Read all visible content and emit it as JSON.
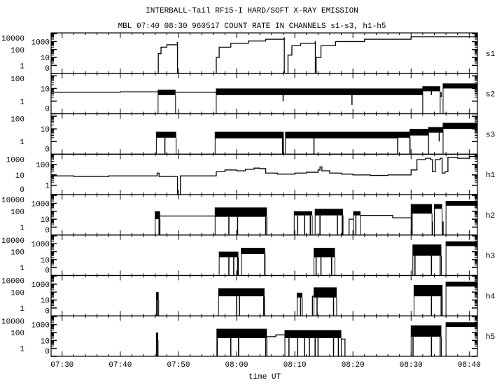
{
  "chart_data": {
    "type": "line",
    "title": "INTERBALL-Tail RF15-I HARD/SOFT X-RAY EMISSION",
    "subtitle": "MBL 07:40 08:30 960517  COUNT RATE IN CHANNELS s1-s3, h1-h5",
    "xlabel": "time UT",
    "xlim": [
      "07:28:06",
      "08:41:24"
    ],
    "xticks": [
      "07:30",
      "07:40",
      "07:50",
      "08:00",
      "08:10",
      "08:20",
      "08:30",
      "08:40"
    ],
    "y_scale": "log (zero shown at bottom)",
    "grid": false,
    "line_color": "#000000",
    "panels": [
      {
        "label": "s1",
        "ylog_range": [
          -1,
          4.1
        ],
        "yticks": [
          "0",
          "1",
          "10",
          "100",
          "1000",
          "10000"
        ],
        "lines": [
          [
            [
              "07:46:30",
              0
            ],
            [
              "07:46:32",
              30
            ],
            [
              "07:47:00",
              200
            ],
            [
              "07:48:00",
              400
            ],
            [
              "07:49:48",
              800
            ],
            [
              "07:49:50",
              0
            ]
          ],
          [
            [
              "07:56:24",
              0
            ],
            [
              "07:56:30",
              10
            ],
            [
              "07:57:00",
              200
            ],
            [
              "07:59:00",
              600
            ],
            [
              "08:02:00",
              1200
            ],
            [
              "08:05:00",
              2000
            ],
            [
              "08:08:10",
              3000
            ],
            [
              "08:08:12",
              0
            ]
          ],
          [
            [
              "08:08:45",
              0
            ],
            [
              "08:08:50",
              20
            ],
            [
              "08:09:30",
              300
            ],
            [
              "08:11:00",
              600
            ],
            [
              "08:13:30",
              1000
            ],
            [
              "08:13:32",
              0
            ]
          ],
          [
            [
              "08:13:36",
              0
            ],
            [
              "08:13:40",
              10
            ],
            [
              "08:14:30",
              300
            ],
            [
              "08:17:00",
              1000
            ],
            [
              "08:22:00",
              2000
            ],
            [
              "08:30:00",
              4000
            ],
            [
              "08:41:24",
              8000
            ]
          ]
        ],
        "bands": [],
        "dropouts": []
      },
      {
        "label": "s2",
        "ylog_range": [
          -1,
          2.2
        ],
        "yticks": [
          "0",
          "1",
          "10",
          "100"
        ],
        "lines": [
          [
            [
              "07:28:06",
              5
            ],
            [
              "07:35:00",
              5
            ],
            [
              "07:40:00",
              5.5
            ],
            [
              "07:46:30",
              5
            ],
            [
              "07:46:31",
              5
            ]
          ],
          [
            [
              "07:49:30",
              5
            ],
            [
              "07:53:00",
              5
            ],
            [
              "07:56:30",
              5
            ]
          ]
        ],
        "bands": [
          {
            "start": "07:46:30",
            "end": "07:49:30",
            "low": 3,
            "high": 8
          },
          {
            "start": "07:56:30",
            "end": "08:32:00",
            "low": 3,
            "high": 10
          },
          {
            "start": "08:32:00",
            "end": "08:35:00",
            "low": 6,
            "high": 15
          },
          {
            "start": "08:35:30",
            "end": "08:41:24",
            "low": 10,
            "high": 25
          }
        ],
        "dropouts": [
          {
            "time": "08:08:00",
            "value": 1
          },
          {
            "time": "08:19:50",
            "value": 0.5
          },
          {
            "time": "08:33:30",
            "value": 3
          },
          {
            "time": "08:35:10",
            "value": 2
          }
        ]
      },
      {
        "label": "s3",
        "ylog_range": [
          -1,
          2.2
        ],
        "yticks": [
          "0",
          "1",
          "10",
          "100"
        ],
        "lines": [],
        "bands": [
          {
            "start": "07:46:12",
            "end": "07:49:36",
            "low": 2,
            "high": 6
          },
          {
            "start": "07:56:18",
            "end": "08:08:06",
            "low": 1.8,
            "high": 6
          },
          {
            "start": "08:08:24",
            "end": "08:27:42",
            "low": 1.8,
            "high": 6
          },
          {
            "start": "08:27:42",
            "end": "08:29:48",
            "low": 2,
            "high": 6
          },
          {
            "start": "08:29:48",
            "end": "08:33:00",
            "low": 3,
            "high": 10
          },
          {
            "start": "08:33:00",
            "end": "08:35:30",
            "low": 5,
            "high": 14
          },
          {
            "start": "08:35:30",
            "end": "08:41:24",
            "low": 10,
            "high": 30
          }
        ],
        "dropouts": [
          {
            "time": "07:47:40",
            "value": 0
          },
          {
            "time": "08:07:54",
            "value": 0
          },
          {
            "time": "08:13:18",
            "value": 0
          },
          {
            "time": "08:27:42",
            "value": 0
          },
          {
            "time": "08:29:48",
            "value": 0
          },
          {
            "time": "08:34:50",
            "value": 1
          }
        ]
      },
      {
        "label": "h1",
        "ylog_range": [
          -0.9,
          3.0
        ],
        "yticks": [
          "0",
          "1",
          "10",
          "100",
          "1000"
        ],
        "lines": [
          [
            [
              "07:28:06",
              8
            ],
            [
              "07:32:00",
              7
            ],
            [
              "07:38:00",
              8
            ],
            [
              "07:44:00",
              8
            ],
            [
              "07:46:00",
              8
            ],
            [
              "07:46:20",
              15
            ],
            [
              "07:46:40",
              7
            ],
            [
              "07:49:40",
              7
            ],
            [
              "07:49:50",
              0
            ],
            [
              "07:50:10",
              0
            ],
            [
              "07:50:20",
              8
            ],
            [
              "07:56:00",
              8
            ],
            [
              "07:56:30",
              20
            ],
            [
              "07:58:00",
              30
            ],
            [
              "08:00:00",
              25
            ],
            [
              "08:01:30",
              35
            ],
            [
              "08:03:00",
              45
            ],
            [
              "08:04:00",
              40
            ],
            [
              "08:05:00",
              15
            ],
            [
              "08:07:00",
              12
            ],
            [
              "08:10:00",
              15
            ],
            [
              "08:12:00",
              18
            ],
            [
              "08:14:00",
              30
            ],
            [
              "08:14:20",
              60
            ],
            [
              "08:14:40",
              25
            ],
            [
              "08:16:00",
              15
            ],
            [
              "08:18:00",
              12
            ],
            [
              "08:20:00",
              10
            ],
            [
              "08:23:00",
              9
            ],
            [
              "08:26:00",
              10
            ],
            [
              "08:29:00",
              10
            ],
            [
              "08:30:00",
              30
            ],
            [
              "08:31:00",
              300
            ],
            [
              "08:32:30",
              400
            ],
            [
              "08:33:20",
              300
            ],
            [
              "08:33:40",
              20
            ],
            [
              "08:34:10",
              300
            ],
            [
              "08:35:00",
              400
            ],
            [
              "08:35:20",
              15
            ],
            [
              "08:35:50",
              20
            ],
            [
              "08:36:20",
              500
            ],
            [
              "08:38:00",
              400
            ],
            [
              "08:40:00",
              600
            ],
            [
              "08:41:24",
              500
            ]
          ]
        ],
        "bands": [],
        "dropouts": []
      },
      {
        "label": "h2",
        "ylog_range": [
          -1,
          4.1
        ],
        "yticks": [
          "0",
          "1",
          "10",
          "100",
          "1000",
          "10000"
        ],
        "lines": [
          [
            [
              "07:46:50",
              25
            ],
            [
              "07:56:18",
              25
            ]
          ],
          [
            [
              "08:19:18",
              0
            ],
            [
              "08:19:20",
              10
            ],
            [
              "08:20:06",
              10
            ]
          ],
          [
            [
              "08:21:18",
              30
            ],
            [
              "08:26:48",
              30
            ],
            [
              "08:26:50",
              15
            ],
            [
              "08:30:00",
              15
            ]
          ]
        ],
        "bands": [
          {
            "start": "07:46:00",
            "end": "07:46:50",
            "low": 10,
            "high": 100
          },
          {
            "start": "07:56:18",
            "end": "08:05:12",
            "low": 20,
            "high": 300
          },
          {
            "start": "08:09:54",
            "end": "08:13:00",
            "low": 30,
            "high": 100
          },
          {
            "start": "08:13:30",
            "end": "08:18:18",
            "low": 30,
            "high": 200
          },
          {
            "start": "08:20:06",
            "end": "08:21:18",
            "low": 30,
            "high": 100
          },
          {
            "start": "08:30:00",
            "end": "08:33:36",
            "low": 50,
            "high": 800
          },
          {
            "start": "08:34:00",
            "end": "08:35:20",
            "low": 200,
            "high": 800
          },
          {
            "start": "08:36:00",
            "end": "08:41:24",
            "low": 500,
            "high": 2000
          }
        ],
        "dropouts": [
          {
            "time": "07:46:40",
            "value": 0
          },
          {
            "time": "07:58:40",
            "value": 0
          },
          {
            "time": "08:00:10",
            "value": 0
          },
          {
            "time": "08:05:00",
            "value": 0
          },
          {
            "time": "08:10:30",
            "value": 0
          },
          {
            "time": "08:11:40",
            "value": 0
          },
          {
            "time": "08:12:40",
            "value": 0
          },
          {
            "time": "08:14:20",
            "value": 0
          },
          {
            "time": "08:17:20",
            "value": 0
          },
          {
            "time": "08:18:10",
            "value": 0
          },
          {
            "time": "08:20:30",
            "value": 0
          },
          {
            "time": "08:30:10",
            "value": 0
          },
          {
            "time": "08:33:40",
            "value": 0
          },
          {
            "time": "08:35:30",
            "value": 0
          }
        ]
      },
      {
        "label": "h3",
        "ylog_range": [
          -1,
          4.1
        ],
        "yticks": [
          "0",
          "1",
          "10",
          "100",
          "1000",
          "10000"
        ],
        "lines": [],
        "bands": [
          {
            "start": "07:57:00",
            "end": "08:00:18",
            "low": 20,
            "high": 100
          },
          {
            "start": "08:00:48",
            "end": "08:04:54",
            "low": 50,
            "high": 300
          },
          {
            "start": "08:13:18",
            "end": "08:16:54",
            "low": 20,
            "high": 300
          },
          {
            "start": "08:30:18",
            "end": "08:35:12",
            "low": 30,
            "high": 800
          },
          {
            "start": "08:36:00",
            "end": "08:41:24",
            "low": 500,
            "high": 2000
          }
        ],
        "dropouts": [
          {
            "time": "07:58:40",
            "value": 0
          },
          {
            "time": "07:59:30",
            "value": 0
          },
          {
            "time": "08:00:10",
            "value": 0
          },
          {
            "time": "08:04:50",
            "value": 0
          },
          {
            "time": "08:13:40",
            "value": 0
          },
          {
            "time": "08:14:30",
            "value": 0
          },
          {
            "time": "08:16:20",
            "value": 0
          },
          {
            "time": "08:30:40",
            "value": 0
          },
          {
            "time": "08:33:30",
            "value": 0
          },
          {
            "time": "08:35:00",
            "value": 0
          }
        ]
      },
      {
        "label": "h4",
        "ylog_range": [
          -1,
          4.1
        ],
        "yticks": [
          "0",
          "1",
          "10",
          "100",
          "1000",
          "10000"
        ],
        "lines": [
          [
            [
              "08:13:00",
              0
            ],
            [
              "08:13:02",
              30
            ],
            [
              "08:13:18",
              30
            ]
          ]
        ],
        "bands": [
          {
            "start": "07:46:12",
            "end": "07:46:36",
            "low": 10,
            "high": 100
          },
          {
            "start": "07:56:54",
            "end": "08:04:48",
            "low": 30,
            "high": 300
          },
          {
            "start": "08:10:24",
            "end": "08:11:18",
            "low": 20,
            "high": 80
          },
          {
            "start": "08:13:18",
            "end": "08:17:12",
            "low": 20,
            "high": 400
          },
          {
            "start": "08:30:30",
            "end": "08:35:24",
            "low": 30,
            "high": 800
          },
          {
            "start": "08:36:00",
            "end": "08:41:24",
            "low": 500,
            "high": 2000
          }
        ],
        "dropouts": [
          {
            "time": "07:46:24",
            "value": 0
          },
          {
            "time": "08:00:00",
            "value": 0
          },
          {
            "time": "08:00:30",
            "value": 0
          },
          {
            "time": "08:04:40",
            "value": 0
          },
          {
            "time": "08:11:00",
            "value": 0
          },
          {
            "time": "08:13:50",
            "value": 0
          },
          {
            "time": "08:16:40",
            "value": 0
          },
          {
            "time": "08:33:30",
            "value": 0
          },
          {
            "time": "08:35:10",
            "value": 0
          }
        ]
      },
      {
        "label": "h5",
        "ylog_range": [
          -1,
          4.1
        ],
        "yticks": [
          "0",
          "1",
          "10",
          "100",
          "1000",
          "10000"
        ],
        "lines": [
          [
            [
              "08:05:12",
              30
            ],
            [
              "08:06:42",
              30
            ],
            [
              "08:06:44",
              50
            ],
            [
              "08:08:18",
              50
            ]
          ],
          [
            [
              "08:18:00",
              15
            ],
            [
              "08:18:36",
              15
            ],
            [
              "08:18:38",
              0
            ]
          ]
        ],
        "bands": [
          {
            "start": "07:46:12",
            "end": "07:46:30",
            "low": 10,
            "high": 100
          },
          {
            "start": "07:56:36",
            "end": "08:05:12",
            "low": 20,
            "high": 300
          },
          {
            "start": "08:08:18",
            "end": "08:18:00",
            "low": 20,
            "high": 200
          },
          {
            "start": "08:30:00",
            "end": "08:35:12",
            "low": 30,
            "high": 800
          },
          {
            "start": "08:36:00",
            "end": "08:41:24",
            "low": 500,
            "high": 2000
          }
        ],
        "dropouts": [
          {
            "time": "07:46:20",
            "value": 0
          },
          {
            "time": "07:56:40",
            "value": 0
          },
          {
            "time": "07:59:00",
            "value": 0
          },
          {
            "time": "08:00:20",
            "value": 0
          },
          {
            "time": "08:05:00",
            "value": 0
          },
          {
            "time": "08:09:00",
            "value": 0
          },
          {
            "time": "08:10:30",
            "value": 0
          },
          {
            "time": "08:11:40",
            "value": 0
          },
          {
            "time": "08:12:30",
            "value": 0
          },
          {
            "time": "08:13:30",
            "value": 0
          },
          {
            "time": "08:14:00",
            "value": 0
          },
          {
            "time": "08:16:40",
            "value": 0
          },
          {
            "time": "08:17:30",
            "value": 0
          },
          {
            "time": "08:30:20",
            "value": 0
          },
          {
            "time": "08:33:30",
            "value": 0
          },
          {
            "time": "08:35:00",
            "value": 0
          }
        ]
      }
    ]
  }
}
